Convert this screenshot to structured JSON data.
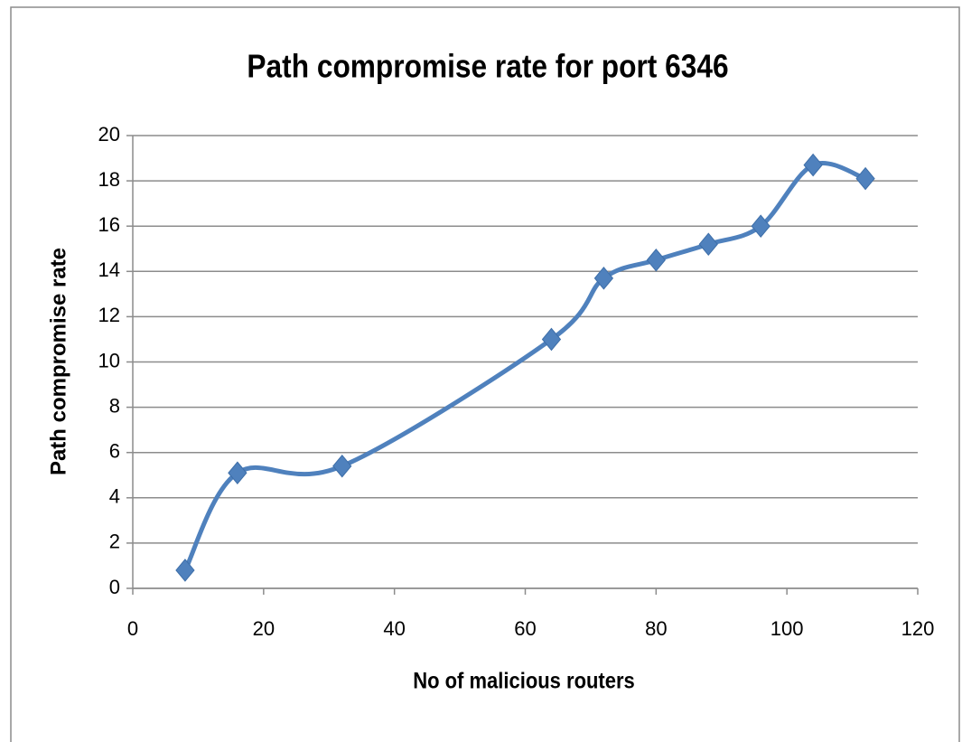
{
  "chart_data": {
    "type": "line",
    "title": "Path compromise rate for port 6346",
    "x_label": "No of malicious routers",
    "y_label": "Path compromise rate",
    "x": [
      8,
      16,
      32,
      64,
      72,
      80,
      88,
      96,
      104,
      112
    ],
    "series": [
      {
        "name": "Path compromise rate",
        "color": "#4f81bd",
        "values": [
          0.8,
          5.1,
          5.4,
          11,
          13.7,
          14.5,
          15.2,
          16,
          18.7,
          18.1
        ]
      }
    ],
    "xlim": [
      0,
      120
    ],
    "xticks": [
      0,
      20,
      40,
      60,
      80,
      100,
      120
    ],
    "ylim": [
      0,
      20
    ],
    "yticks": [
      0,
      2,
      4,
      6,
      8,
      10,
      12,
      14,
      16,
      18,
      20
    ],
    "grid": true,
    "smooth": true
  }
}
